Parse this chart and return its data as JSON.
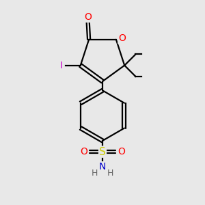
{
  "bg_color": "#e8e8e8",
  "atom_colors": {
    "C": "#000000",
    "O": "#ff0000",
    "N": "#0000cd",
    "S": "#cccc00",
    "I": "#cc00cc"
  },
  "figsize": [
    3.0,
    3.0
  ],
  "dpi": 100,
  "lw": 1.6
}
